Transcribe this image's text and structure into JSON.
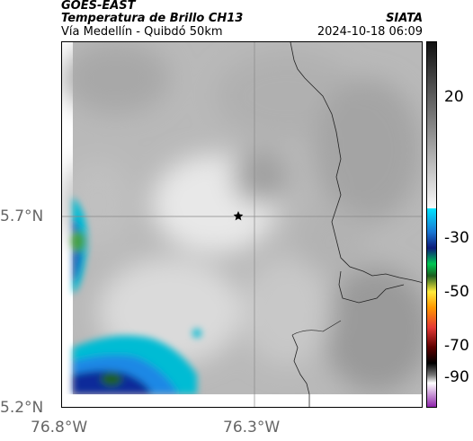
{
  "header": {
    "title1": "GOES-EAST",
    "title2": "Temperatura de Brillo CH13",
    "subtitle": "Vía Medellín - Quibdó 50km",
    "org": "SIATA",
    "datetime": "2024-10-18 06:09"
  },
  "axes": {
    "y_ticks": [
      "5.7°N",
      "5.2°N"
    ],
    "x_ticks": [
      "76.8°W",
      "76.3°W"
    ]
  },
  "colorbar": {
    "labels": [
      "20",
      "-30",
      "-50",
      "-70",
      "-90"
    ]
  },
  "marker": {
    "icon": "star-icon"
  }
}
